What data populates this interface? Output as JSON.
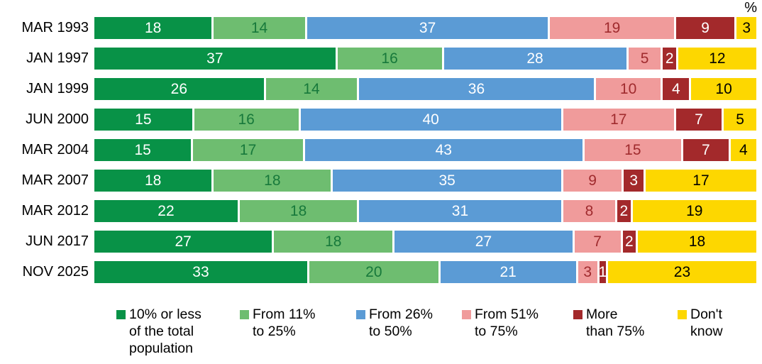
{
  "chart_data": {
    "type": "bar",
    "orientation": "horizontal",
    "stacked": true,
    "unit_label": "%",
    "title": "",
    "xlabel": "",
    "ylabel": "",
    "xlim": [
      0,
      100
    ],
    "grid": false,
    "legend_position": "bottom",
    "categories": [
      "MAR 1993",
      "JAN 1997",
      "JAN 1999",
      "JUN 2000",
      "MAR 2004",
      "MAR 2007",
      "MAR 2012",
      "JUN 2017",
      "NOV 2025"
    ],
    "series": [
      {
        "name": "10% or less of the total population",
        "legend_lines": "10% or less\nof the total\npopulation",
        "color": "#089247",
        "label_color": "#ffffff",
        "values": [
          18,
          37,
          26,
          15,
          15,
          18,
          22,
          27,
          33
        ]
      },
      {
        "name": "From 11% to 25%",
        "legend_lines": "From 11%\nto 25%",
        "color": "#6ebd70",
        "label_color": "#17793b",
        "values": [
          14,
          16,
          14,
          16,
          17,
          18,
          18,
          18,
          20
        ]
      },
      {
        "name": "From 26% to 50%",
        "legend_lines": "From 26%\nto 50%",
        "color": "#5b9bd5",
        "label_color": "#ffffff",
        "values": [
          37,
          28,
          36,
          40,
          43,
          35,
          31,
          27,
          21
        ]
      },
      {
        "name": "From 51% to 75%",
        "legend_lines": "From 51%\nto 75%",
        "color": "#f09b9b",
        "label_color": "#a02b2e",
        "values": [
          19,
          5,
          10,
          17,
          15,
          9,
          8,
          7,
          3
        ]
      },
      {
        "name": "More than 75%",
        "legend_lines": "More\nthan 75%",
        "color": "#a3292b",
        "label_color": "#ffffff",
        "values": [
          9,
          2,
          4,
          7,
          7,
          3,
          2,
          2,
          1
        ]
      },
      {
        "name": "Don't know",
        "legend_lines": "Don't\nknow",
        "color": "#fdd700",
        "label_color": "#000000",
        "values": [
          3,
          12,
          10,
          5,
          4,
          17,
          19,
          18,
          23
        ]
      }
    ]
  }
}
